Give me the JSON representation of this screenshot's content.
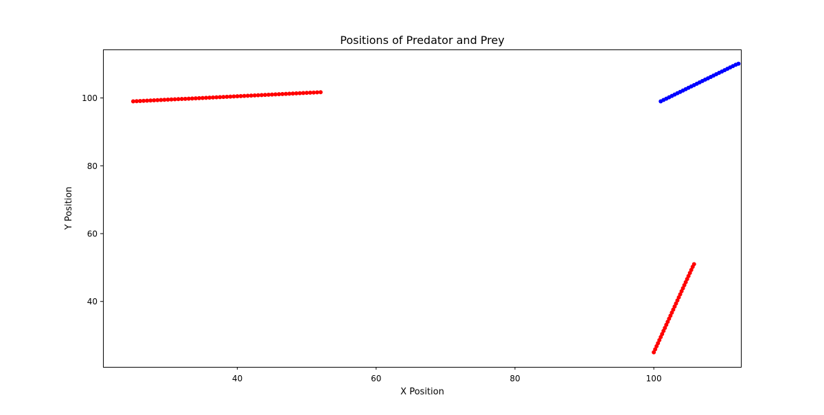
{
  "chart_data": {
    "type": "scatter",
    "title": "Positions of Predator and Prey",
    "xlabel": "X Position",
    "ylabel": "Y Position",
    "xlim": [
      20.65,
      112.55
    ],
    "ylim": [
      20.7,
      114.3
    ],
    "xticks": [
      40,
      60,
      80,
      100
    ],
    "yticks": [
      40,
      60,
      80,
      100
    ],
    "grid": false,
    "legend": "none",
    "series": [
      {
        "color": "#ff0000",
        "points": [
          {
            "x": 25.0,
            "y": 99.0
          },
          {
            "x": 25.5,
            "y": 99.05
          },
          {
            "x": 26.0,
            "y": 99.1
          },
          {
            "x": 26.5,
            "y": 99.15
          },
          {
            "x": 27.0,
            "y": 99.2
          },
          {
            "x": 27.5,
            "y": 99.25
          },
          {
            "x": 28.0,
            "y": 99.3
          },
          {
            "x": 28.5,
            "y": 99.35
          },
          {
            "x": 29.0,
            "y": 99.4
          },
          {
            "x": 29.5,
            "y": 99.45
          },
          {
            "x": 30.0,
            "y": 99.5
          },
          {
            "x": 30.5,
            "y": 99.55
          },
          {
            "x": 31.0,
            "y": 99.6
          },
          {
            "x": 31.5,
            "y": 99.65
          },
          {
            "x": 32.0,
            "y": 99.7
          },
          {
            "x": 32.5,
            "y": 99.75
          },
          {
            "x": 33.0,
            "y": 99.8
          },
          {
            "x": 33.5,
            "y": 99.85
          },
          {
            "x": 34.0,
            "y": 99.9
          },
          {
            "x": 34.5,
            "y": 99.95
          },
          {
            "x": 35.0,
            "y": 100.0
          },
          {
            "x": 35.5,
            "y": 100.05
          },
          {
            "x": 36.0,
            "y": 100.1
          },
          {
            "x": 36.5,
            "y": 100.15
          },
          {
            "x": 37.0,
            "y": 100.2
          },
          {
            "x": 37.5,
            "y": 100.25
          },
          {
            "x": 38.0,
            "y": 100.3
          },
          {
            "x": 38.5,
            "y": 100.35
          },
          {
            "x": 39.0,
            "y": 100.4
          },
          {
            "x": 39.5,
            "y": 100.45
          },
          {
            "x": 40.0,
            "y": 100.5
          },
          {
            "x": 40.5,
            "y": 100.55
          },
          {
            "x": 41.0,
            "y": 100.6
          },
          {
            "x": 41.5,
            "y": 100.65
          },
          {
            "x": 42.0,
            "y": 100.7
          },
          {
            "x": 42.5,
            "y": 100.75
          },
          {
            "x": 43.0,
            "y": 100.8
          },
          {
            "x": 43.5,
            "y": 100.85
          },
          {
            "x": 44.0,
            "y": 100.9
          },
          {
            "x": 44.5,
            "y": 100.95
          },
          {
            "x": 45.0,
            "y": 101.0
          },
          {
            "x": 45.5,
            "y": 101.05
          },
          {
            "x": 46.0,
            "y": 101.1
          },
          {
            "x": 46.5,
            "y": 101.15
          },
          {
            "x": 47.0,
            "y": 101.2
          },
          {
            "x": 47.5,
            "y": 101.25
          },
          {
            "x": 48.0,
            "y": 101.3
          },
          {
            "x": 48.5,
            "y": 101.35
          },
          {
            "x": 49.0,
            "y": 101.4
          },
          {
            "x": 49.5,
            "y": 101.45
          },
          {
            "x": 50.0,
            "y": 101.5
          },
          {
            "x": 50.5,
            "y": 101.55
          },
          {
            "x": 51.0,
            "y": 101.6
          },
          {
            "x": 51.5,
            "y": 101.65
          },
          {
            "x": 52.0,
            "y": 101.7
          }
        ]
      },
      {
        "color": "#ff0000",
        "points": [
          {
            "x": 100.0,
            "y": 25.0
          },
          {
            "x": 100.2,
            "y": 25.9
          },
          {
            "x": 100.4,
            "y": 26.8
          },
          {
            "x": 100.6,
            "y": 27.7
          },
          {
            "x": 100.8,
            "y": 28.6
          },
          {
            "x": 101.0,
            "y": 29.5
          },
          {
            "x": 101.2,
            "y": 30.4
          },
          {
            "x": 101.4,
            "y": 31.3
          },
          {
            "x": 101.6,
            "y": 32.2
          },
          {
            "x": 101.8,
            "y": 33.1
          },
          {
            "x": 102.0,
            "y": 34.0
          },
          {
            "x": 102.2,
            "y": 34.9
          },
          {
            "x": 102.4,
            "y": 35.8
          },
          {
            "x": 102.6,
            "y": 36.7
          },
          {
            "x": 102.8,
            "y": 37.6
          },
          {
            "x": 103.0,
            "y": 38.5
          },
          {
            "x": 103.2,
            "y": 39.4
          },
          {
            "x": 103.4,
            "y": 40.3
          },
          {
            "x": 103.6,
            "y": 41.2
          },
          {
            "x": 103.8,
            "y": 42.1
          },
          {
            "x": 104.0,
            "y": 43.0
          },
          {
            "x": 104.2,
            "y": 43.9
          },
          {
            "x": 104.4,
            "y": 44.8
          },
          {
            "x": 104.6,
            "y": 45.7
          },
          {
            "x": 104.8,
            "y": 46.6
          },
          {
            "x": 105.0,
            "y": 47.5
          },
          {
            "x": 105.2,
            "y": 48.4
          },
          {
            "x": 105.4,
            "y": 49.3
          },
          {
            "x": 105.6,
            "y": 50.2
          },
          {
            "x": 105.8,
            "y": 51.0
          }
        ]
      },
      {
        "color": "#0000ff",
        "points": [
          {
            "x": 101.0,
            "y": 99.0
          },
          {
            "x": 101.4,
            "y": 99.4
          },
          {
            "x": 101.8,
            "y": 99.8
          },
          {
            "x": 102.2,
            "y": 100.2
          },
          {
            "x": 102.6,
            "y": 100.6
          },
          {
            "x": 103.0,
            "y": 101.0
          },
          {
            "x": 103.4,
            "y": 101.4
          },
          {
            "x": 103.8,
            "y": 101.8
          },
          {
            "x": 104.2,
            "y": 102.2
          },
          {
            "x": 104.6,
            "y": 102.6
          },
          {
            "x": 105.0,
            "y": 103.0
          },
          {
            "x": 105.4,
            "y": 103.4
          },
          {
            "x": 105.8,
            "y": 103.8
          },
          {
            "x": 106.2,
            "y": 104.2
          },
          {
            "x": 106.6,
            "y": 104.6
          },
          {
            "x": 107.0,
            "y": 105.0
          },
          {
            "x": 107.4,
            "y": 105.4
          },
          {
            "x": 107.8,
            "y": 105.8
          },
          {
            "x": 108.2,
            "y": 106.2
          },
          {
            "x": 108.6,
            "y": 106.6
          },
          {
            "x": 109.0,
            "y": 107.0
          },
          {
            "x": 109.4,
            "y": 107.4
          },
          {
            "x": 109.8,
            "y": 107.8
          },
          {
            "x": 110.2,
            "y": 108.2
          },
          {
            "x": 110.6,
            "y": 108.6
          },
          {
            "x": 111.0,
            "y": 109.0
          },
          {
            "x": 111.4,
            "y": 109.4
          },
          {
            "x": 111.8,
            "y": 109.8
          },
          {
            "x": 112.2,
            "y": 110.1
          }
        ]
      }
    ]
  }
}
